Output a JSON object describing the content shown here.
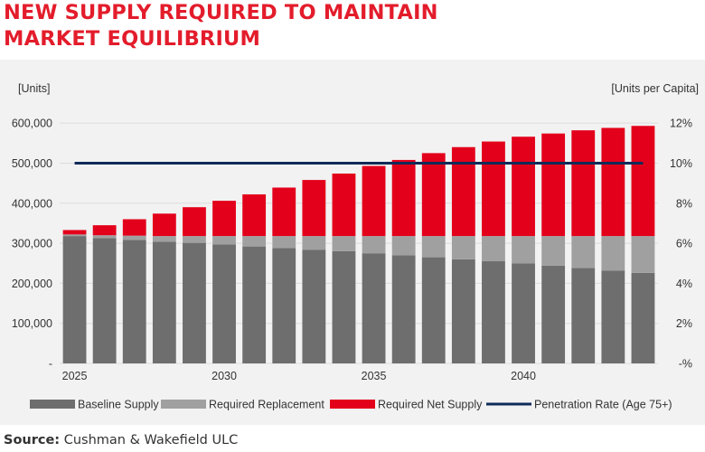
{
  "title_line1": "NEW SUPPLY REQUIRED TO MAINTAIN",
  "title_line2": "MARKET EQUILIBRIUM",
  "source_label": "Source:",
  "source_text": " Cushman & Wakefield ULC",
  "colors": {
    "title": "#e31c2b",
    "baseline": "#6e6e6e",
    "replacement": "#a0a0a0",
    "net": "#e3001b",
    "line": "#0f2b59"
  },
  "chart_data": {
    "type": "bar",
    "stacked": true,
    "left_axis_label": "[Units]",
    "right_axis_label": "[Units per Capita]",
    "x": [
      2025,
      2026,
      2027,
      2028,
      2029,
      2030,
      2031,
      2032,
      2033,
      2034,
      2035,
      2036,
      2037,
      2038,
      2039,
      2040,
      2041,
      2042,
      2043,
      2044
    ],
    "x_tick_labels": [
      "2025",
      "2030",
      "2035",
      "2040"
    ],
    "y_ticks_left": [
      "-",
      "100,000",
      "200,000",
      "300,000",
      "400,000",
      "500,000",
      "600,000"
    ],
    "y_ticks_right": [
      "-%",
      "2%",
      "4%",
      "6%",
      "8%",
      "10%",
      "12%"
    ],
    "ylim_left": [
      0,
      600000
    ],
    "ylim_right": [
      0,
      0.12
    ],
    "series": [
      {
        "name": "Baseline Supply",
        "axis": "left",
        "values": [
          318000,
          313000,
          308000,
          304000,
          301000,
          297000,
          292000,
          288000,
          284000,
          280000,
          275000,
          270000,
          265000,
          260000,
          255000,
          250000,
          244000,
          238000,
          232000,
          226000
        ]
      },
      {
        "name": "Required Replacement",
        "axis": "left",
        "values": [
          4000,
          7000,
          11000,
          14000,
          17000,
          21000,
          26000,
          30000,
          34000,
          38000,
          43000,
          48000,
          53000,
          58000,
          63000,
          68000,
          74000,
          80000,
          86000,
          92000
        ]
      },
      {
        "name": "Required Net Supply",
        "axis": "left",
        "values": [
          11000,
          25000,
          41000,
          56000,
          72000,
          88000,
          104000,
          121000,
          140000,
          156000,
          175000,
          190000,
          207000,
          222000,
          236000,
          248000,
          256000,
          264000,
          270000,
          275000
        ]
      },
      {
        "name": "Penetration Rate (Age 75+)",
        "axis": "right",
        "kind": "line",
        "values": [
          0.1,
          0.1,
          0.1,
          0.1,
          0.1,
          0.1,
          0.1,
          0.1,
          0.1,
          0.1,
          0.1,
          0.1,
          0.1,
          0.1,
          0.1,
          0.1,
          0.1,
          0.1,
          0.1,
          0.1
        ]
      }
    ],
    "legend": [
      "Baseline Supply",
      "Required Replacement",
      "Required Net Supply",
      "Penetration Rate (Age 75+)"
    ],
    "legend_position": "bottom",
    "grid": true
  }
}
